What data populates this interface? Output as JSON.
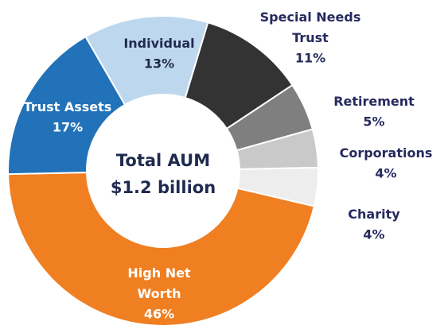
{
  "chart_data": {
    "type": "donut",
    "categories": [
      "Individual",
      "Special Needs Trust",
      "Retirement",
      "Corporations",
      "Charity",
      "High Net Worth",
      "Trust Assets"
    ],
    "values": [
      13,
      11,
      5,
      4,
      4,
      46,
      17
    ],
    "value_labels": [
      "13%",
      "11%",
      "5%",
      "4%",
      "4%",
      "46%",
      "17%"
    ],
    "colors": [
      "#bdd7ee",
      "#333333",
      "#7f7f7f",
      "#c9c9c9",
      "#ededed",
      "#f07f22",
      "#2272b9"
    ],
    "center_text": [
      "Total AUM",
      "$1.2 billion"
    ]
  }
}
